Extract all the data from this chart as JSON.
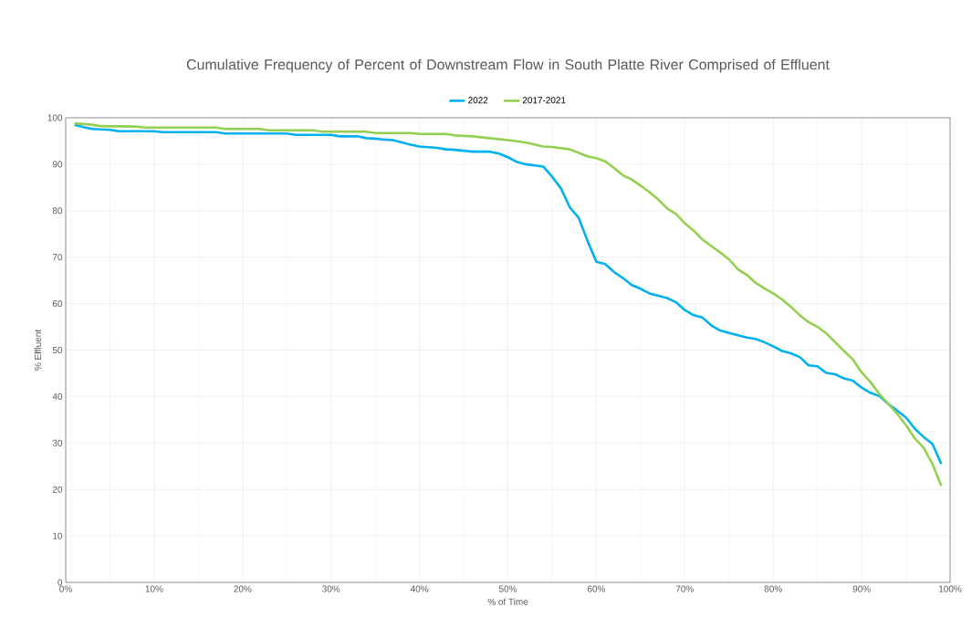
{
  "chart_data": {
    "type": "line",
    "title": "Cumulative Frequency of Percent of Downstream Flow in South Platte River Comprised of Effluent",
    "xlabel": "% of Time",
    "ylabel": "% Effluent",
    "series": [
      {
        "name": "2022",
        "color": "#00b0f0",
        "x": [
          1,
          2,
          3,
          5,
          6,
          10,
          11,
          17,
          18,
          25,
          26,
          30,
          31,
          33,
          34,
          35,
          36,
          37,
          39,
          40,
          42,
          43,
          44,
          46,
          48,
          49,
          50,
          51,
          52,
          54,
          55,
          56,
          57,
          58,
          59,
          60,
          61,
          62,
          63,
          64,
          65,
          66,
          67,
          68,
          69,
          70,
          71,
          72,
          73,
          74,
          75,
          76,
          77,
          78,
          79,
          80,
          81,
          82,
          83,
          84,
          85,
          86,
          87,
          88,
          89,
          90,
          91,
          92,
          93,
          94,
          95,
          96,
          97,
          98,
          99
        ],
        "values": [
          98.5,
          98,
          97.6,
          97.4,
          97.1,
          97.1,
          96.9,
          96.9,
          96.6,
          96.6,
          96.3,
          96.3,
          96,
          96,
          95.6,
          95.5,
          95.3,
          95.2,
          94.2,
          93.8,
          93.5,
          93.2,
          93.1,
          92.7,
          92.7,
          92.3,
          91.5,
          90.5,
          90,
          89.5,
          87.3,
          84.8,
          80.7,
          78.5,
          73.5,
          69,
          68.5,
          66.8,
          65.5,
          64,
          63.2,
          62.2,
          61.7,
          61.2,
          60.3,
          58.6,
          57.5,
          57,
          55.3,
          54.2,
          53.7,
          53.2,
          52.7,
          52.4,
          51.7,
          50.8,
          49.8,
          49.3,
          48.5,
          46.7,
          46.5,
          45.1,
          44.8,
          43.9,
          43.4,
          41.9,
          40.8,
          40.1,
          38.4,
          37,
          35.5,
          33.1,
          31.3,
          29.8,
          25.5
        ]
      },
      {
        "name": "2017-2021",
        "color": "#92d050",
        "x": [
          1,
          3,
          4,
          8,
          9,
          17,
          18,
          22,
          23,
          28,
          29,
          34,
          35,
          39,
          40,
          43,
          44,
          46,
          48,
          50,
          52,
          54,
          55,
          57,
          59,
          60,
          61,
          62,
          63,
          64,
          65,
          66,
          67,
          68,
          69,
          70,
          71,
          72,
          73,
          74,
          75,
          76,
          77,
          78,
          79,
          80,
          81,
          82,
          83,
          84,
          85,
          86,
          87,
          88,
          89,
          90,
          91,
          92,
          93,
          94,
          95,
          96,
          97,
          98,
          99
        ],
        "values": [
          98.8,
          98.5,
          98.2,
          98.1,
          97.9,
          97.9,
          97.6,
          97.6,
          97.3,
          97.3,
          97,
          97,
          96.7,
          96.7,
          96.5,
          96.5,
          96.2,
          96,
          95.6,
          95.2,
          94.7,
          93.8,
          93.7,
          93.2,
          91.7,
          91.3,
          90.6,
          89.2,
          87.6,
          86.7,
          85.4,
          84,
          82.4,
          80.5,
          79.3,
          77.3,
          75.7,
          73.8,
          72.4,
          71,
          69.5,
          67.4,
          66.2,
          64.5,
          63.3,
          62.2,
          60.9,
          59.3,
          57.5,
          56,
          55,
          53.6,
          51.7,
          49.8,
          48,
          45.2,
          43.1,
          40.5,
          38.5,
          36.3,
          33.9,
          31,
          29,
          25.5,
          20.8
        ]
      }
    ],
    "xlim": [
      0,
      100
    ],
    "xticks": [
      {
        "value": 0,
        "label": "0%"
      },
      {
        "value": 10,
        "label": "10%"
      },
      {
        "value": 20,
        "label": "20%"
      },
      {
        "value": 30,
        "label": "30%"
      },
      {
        "value": 40,
        "label": "40%"
      },
      {
        "value": 50,
        "label": "50%"
      },
      {
        "value": 60,
        "label": "60%"
      },
      {
        "value": 70,
        "label": "70%"
      },
      {
        "value": 80,
        "label": "80%"
      },
      {
        "value": 90,
        "label": "90%"
      },
      {
        "value": 100,
        "label": "100%"
      }
    ],
    "ylim": [
      0,
      100
    ],
    "yticks": [
      0,
      10,
      20,
      30,
      40,
      50,
      60,
      70,
      80,
      90,
      100
    ],
    "grid": true,
    "legend": "top",
    "marker": "none",
    "line_style": "solid"
  }
}
